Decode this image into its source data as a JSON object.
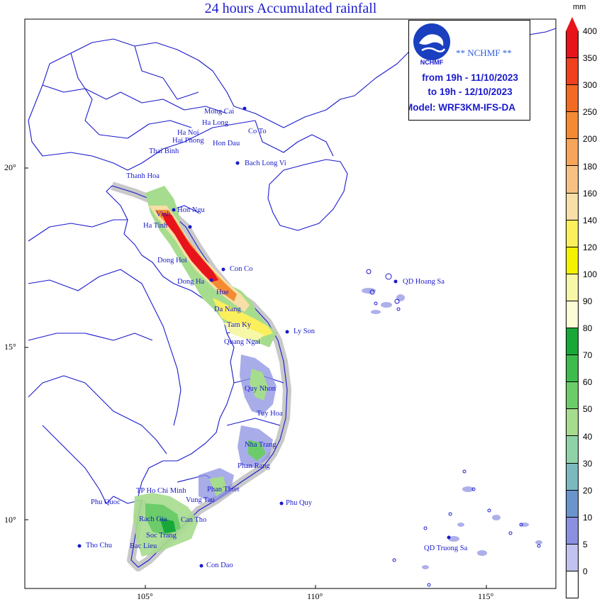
{
  "title": "24 hours Accumulated rainfall",
  "info": {
    "org": "** NCHMF **",
    "logo_text": "NCHMF",
    "from": "from 19h - 11/10/2023",
    "to": "to 19h - 12/10/2023",
    "model": "Model: WRF3KM-IFS-DA"
  },
  "legend": {
    "unit": "mm",
    "levels": [
      "400",
      "350",
      "300",
      "250",
      "200",
      "180",
      "160",
      "140",
      "120",
      "100",
      "90",
      "80",
      "70",
      "60",
      "50",
      "40",
      "30",
      "20",
      "10",
      "5",
      "0"
    ],
    "colors": [
      "#e8141b",
      "#f0401e",
      "#f36a23",
      "#f58a33",
      "#f6a55a",
      "#f6c283",
      "#f7dfa7",
      "#fbf05c",
      "#f4f200",
      "#f7f7a8",
      "#fcfcd6",
      "#18a83a",
      "#3dbb4c",
      "#6ccc6a",
      "#a6dc8d",
      "#8fd2a8",
      "#7cb9bf",
      "#6a94cc",
      "#8b90e0",
      "#c2c2f0",
      "#ffffff"
    ]
  },
  "axes": {
    "lon_labels": [
      "105°",
      "110°",
      "115°"
    ],
    "lat_labels": [
      "20°",
      "15°",
      "10°"
    ]
  },
  "places": [
    {
      "name": "Mong Cai"
    },
    {
      "name": "Ha Long"
    },
    {
      "name": "Co To"
    },
    {
      "name": "Ha Noi"
    },
    {
      "name": "Hai Phong"
    },
    {
      "name": "Hon Dau"
    },
    {
      "name": "Thai Binh"
    },
    {
      "name": "Bach Long Vi"
    },
    {
      "name": "Thanh Hoa"
    },
    {
      "name": "Vinh"
    },
    {
      "name": "Hon Ngu"
    },
    {
      "name": "Ha Tinh"
    },
    {
      "name": "Dong Hoi"
    },
    {
      "name": "Con Co"
    },
    {
      "name": "Dong Ha"
    },
    {
      "name": "Hue"
    },
    {
      "name": "Da Nang"
    },
    {
      "name": "Tam Ky"
    },
    {
      "name": "Ly Son"
    },
    {
      "name": "Quang Ngai"
    },
    {
      "name": "Quy Nhon"
    },
    {
      "name": "Tuy Hoa"
    },
    {
      "name": "Nha Trang"
    },
    {
      "name": "Phan Rang"
    },
    {
      "name": "Phan Thiet"
    },
    {
      "name": "Phu Quy"
    },
    {
      "name": "TP Ho Chi Minh"
    },
    {
      "name": "Vung Tau"
    },
    {
      "name": "Phu Quoc"
    },
    {
      "name": "Rach Gia"
    },
    {
      "name": "Can Tho"
    },
    {
      "name": "Soc Trang"
    },
    {
      "name": "Bac Lieu"
    },
    {
      "name": "Tho Chu"
    },
    {
      "name": "Con Dao"
    },
    {
      "name": "QD Hoang Sa"
    },
    {
      "name": "QD Truong Sa"
    }
  ]
}
